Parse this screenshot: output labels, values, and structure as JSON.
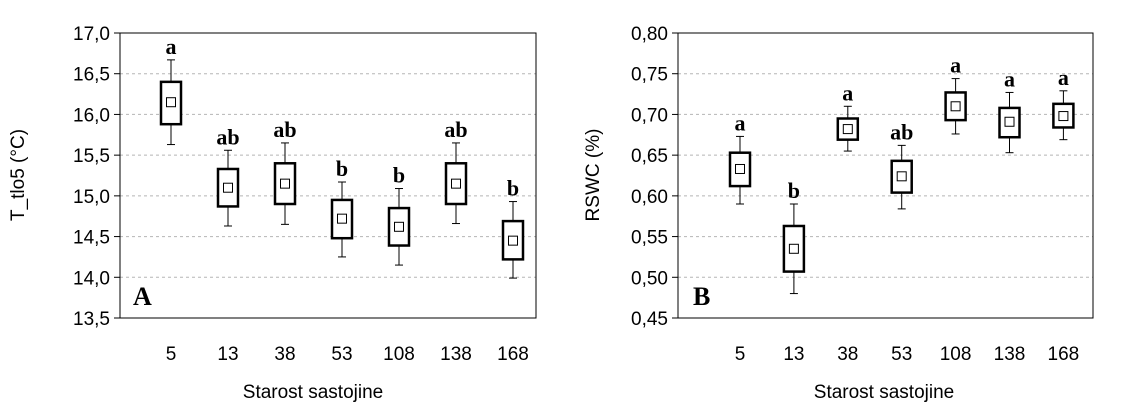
{
  "chart_data": [
    {
      "type": "boxplot",
      "panel_label": "A",
      "xlabel": "Starost sastojine",
      "ylabel": "T_tlo5 (°C)",
      "ylim": [
        13.5,
        17.0
      ],
      "yticks": [
        "13,5",
        "14,0",
        "14,5",
        "15,0",
        "15,5",
        "16,0",
        "16,5",
        "17,0"
      ],
      "ytick_values": [
        13.5,
        14.0,
        14.5,
        15.0,
        15.5,
        16.0,
        16.5,
        17.0
      ],
      "grid": "horizontal dashed",
      "categories": [
        "5",
        "13",
        "38",
        "53",
        "108",
        "138",
        "168"
      ],
      "mean": [
        16.15,
        15.1,
        15.15,
        14.72,
        14.62,
        15.15,
        14.45
      ],
      "box_low": [
        15.88,
        14.87,
        14.9,
        14.48,
        14.39,
        14.9,
        14.22
      ],
      "box_high": [
        16.4,
        15.33,
        15.4,
        14.95,
        14.85,
        15.4,
        14.69
      ],
      "whisker_low": [
        15.63,
        14.63,
        14.65,
        14.25,
        14.15,
        14.66,
        13.99
      ],
      "whisker_high": [
        16.67,
        15.56,
        15.65,
        15.17,
        15.09,
        15.65,
        14.93
      ],
      "group_letters": [
        "a",
        "ab",
        "ab",
        "b",
        "b",
        "ab",
        "b"
      ]
    },
    {
      "type": "boxplot",
      "panel_label": "B",
      "xlabel": "Starost sastojine",
      "ylabel": "RSWC (%)",
      "ylim": [
        0.45,
        0.8
      ],
      "yticks": [
        "0,45",
        "0,50",
        "0,55",
        "0,60",
        "0,65",
        "0,70",
        "0,75",
        "0,80"
      ],
      "ytick_values": [
        0.45,
        0.5,
        0.55,
        0.6,
        0.65,
        0.7,
        0.75,
        0.8
      ],
      "grid": "horizontal dashed",
      "categories": [
        "5",
        "13",
        "38",
        "53",
        "108",
        "138",
        "168"
      ],
      "mean": [
        0.633,
        0.535,
        0.682,
        0.624,
        0.71,
        0.691,
        0.698
      ],
      "box_low": [
        0.612,
        0.507,
        0.669,
        0.604,
        0.693,
        0.672,
        0.684
      ],
      "box_high": [
        0.653,
        0.563,
        0.695,
        0.643,
        0.727,
        0.708,
        0.713
      ],
      "whisker_low": [
        0.59,
        0.48,
        0.655,
        0.584,
        0.676,
        0.653,
        0.669
      ],
      "whisker_high": [
        0.673,
        0.59,
        0.71,
        0.662,
        0.744,
        0.727,
        0.729
      ],
      "group_letters": [
        "a",
        "b",
        "a",
        "ab",
        "a",
        "a",
        "a"
      ]
    }
  ]
}
